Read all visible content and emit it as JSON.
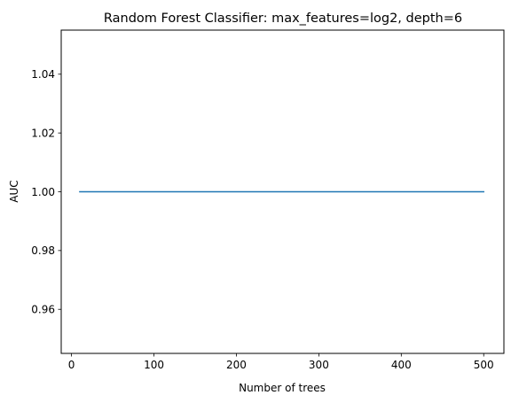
{
  "chart_data": {
    "type": "line",
    "title": "Random Forest Classifier: max_features=log2, depth=6",
    "xlabel": "Number of trees",
    "ylabel": "AUC",
    "xlim": [
      -12.5,
      524.5
    ],
    "ylim": [
      0.945,
      1.055
    ],
    "xticks": [
      0,
      100,
      200,
      300,
      400,
      500
    ],
    "yticks": [
      0.96,
      0.98,
      1.0,
      1.02,
      1.04
    ],
    "ytick_labels": [
      "0.96",
      "0.98",
      "1.00",
      "1.02",
      "1.04"
    ],
    "grid": false,
    "series": [
      {
        "color": "#1f77b4",
        "x": [
          10,
          500
        ],
        "y": [
          1.0,
          1.0
        ]
      }
    ]
  }
}
